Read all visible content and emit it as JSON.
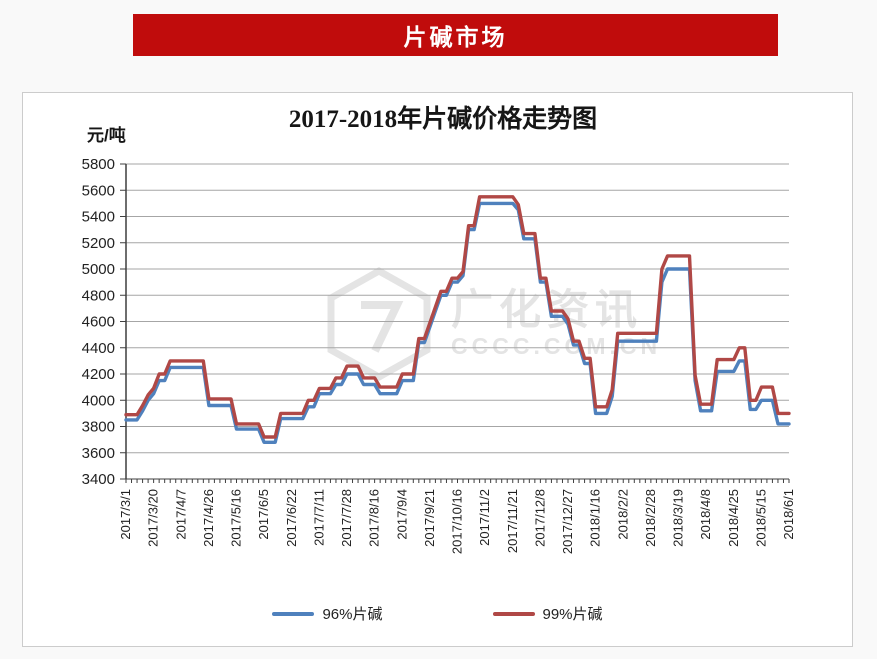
{
  "banner": {
    "label": "片碱市场"
  },
  "watermark": {
    "line1": "广化资讯",
    "line2": "CCCC.COM.CN"
  },
  "colors": {
    "page_bg": "#f9f9f9",
    "panel_bg": "#ffffff",
    "panel_border": "#cccccc",
    "banner_bg": "#c00c0c",
    "banner_text": "#ffffff",
    "series_96": "#4f81bd",
    "series_99": "#b04846",
    "gridline": "#a6a6a6",
    "axis": "#3f3f3f",
    "tick_text": "#222222",
    "watermark": "#e4e4e4"
  },
  "chart_data": {
    "type": "line",
    "title": "2017-2018年片碱价格走势图",
    "ylabel": "元/吨",
    "ylim": [
      3400,
      5800
    ],
    "ytick_step": 200,
    "grid": true,
    "legend_position": "bottom",
    "label_every": 5,
    "x_labels": [
      "2017/3/1",
      "2017/3/20",
      "2017/4/7",
      "2017/4/26",
      "2017/5/16",
      "2017/6/5",
      "2017/6/22",
      "2017/7/11",
      "2017/7/28",
      "2017/8/16",
      "2017/9/4",
      "2017/9/21",
      "2017/10/16",
      "2017/11/2",
      "2017/11/21",
      "2017/12/8",
      "2017/12/27",
      "2018/1/16",
      "2018/2/2",
      "2018/2/28",
      "2018/3/19",
      "2018/4/8",
      "2018/4/25",
      "2018/5/15",
      "2018/6/1"
    ],
    "series": [
      {
        "name": "96%片碱",
        "color_key": "series_96",
        "values": [
          3850,
          3850,
          3850,
          3920,
          4000,
          4050,
          4150,
          4150,
          4250,
          4250,
          4250,
          4250,
          4250,
          4250,
          4250,
          3960,
          3960,
          3960,
          3960,
          3960,
          3780,
          3780,
          3780,
          3780,
          3780,
          3680,
          3680,
          3680,
          3860,
          3860,
          3860,
          3860,
          3860,
          3950,
          3950,
          4050,
          4050,
          4050,
          4120,
          4120,
          4200,
          4200,
          4200,
          4120,
          4120,
          4120,
          4050,
          4050,
          4050,
          4050,
          4150,
          4150,
          4150,
          4440,
          4440,
          4560,
          4680,
          4800,
          4800,
          4900,
          4900,
          4950,
          5300,
          5300,
          5500,
          5500,
          5500,
          5500,
          5500,
          5500,
          5500,
          5450,
          5230,
          5230,
          5230,
          4900,
          4900,
          4640,
          4640,
          4640,
          4580,
          4420,
          4420,
          4280,
          4280,
          3900,
          3900,
          3900,
          4030,
          4450,
          4450,
          4450,
          4450,
          4450,
          4450,
          4450,
          4450,
          4900,
          5000,
          5000,
          5000,
          5000,
          5000,
          4150,
          3920,
          3920,
          3920,
          4220,
          4220,
          4220,
          4220,
          4300,
          4300,
          3930,
          3930,
          4000,
          4000,
          4000,
          3820,
          3820,
          3820
        ]
      },
      {
        "name": "99%片碱",
        "color_key": "series_99",
        "values": [
          3890,
          3890,
          3890,
          3960,
          4040,
          4090,
          4200,
          4200,
          4300,
          4300,
          4300,
          4300,
          4300,
          4300,
          4300,
          4010,
          4010,
          4010,
          4010,
          4010,
          3820,
          3820,
          3820,
          3820,
          3820,
          3720,
          3720,
          3720,
          3900,
          3900,
          3900,
          3900,
          3900,
          4000,
          4000,
          4090,
          4090,
          4090,
          4170,
          4170,
          4260,
          4260,
          4260,
          4170,
          4170,
          4170,
          4100,
          4100,
          4100,
          4100,
          4200,
          4200,
          4200,
          4470,
          4470,
          4590,
          4710,
          4830,
          4830,
          4930,
          4930,
          4980,
          5330,
          5330,
          5550,
          5550,
          5550,
          5550,
          5550,
          5550,
          5550,
          5490,
          5270,
          5270,
          5270,
          4930,
          4930,
          4680,
          4680,
          4680,
          4620,
          4450,
          4450,
          4320,
          4320,
          3950,
          3950,
          3950,
          4080,
          4510,
          4510,
          4510,
          4510,
          4510,
          4510,
          4510,
          4510,
          5000,
          5100,
          5100,
          5100,
          5100,
          5100,
          4190,
          3970,
          3970,
          3970,
          4310,
          4310,
          4310,
          4310,
          4400,
          4400,
          4000,
          4000,
          4100,
          4100,
          4100,
          3900,
          3900,
          3900
        ]
      }
    ]
  }
}
